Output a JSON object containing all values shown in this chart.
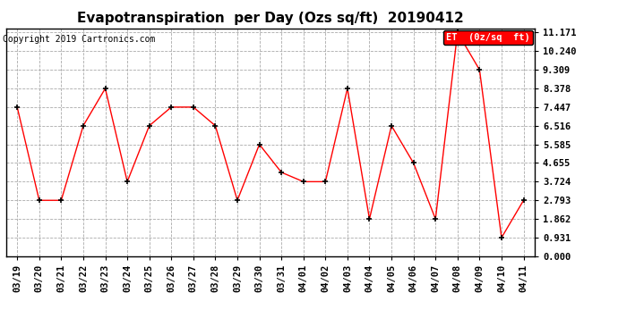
{
  "title": "Evapotranspiration  per Day (Ozs sq/ft)  20190412",
  "copyright": "Copyright 2019 Cartronics.com",
  "legend_label": "ET  (0z/sq  ft)",
  "x_labels": [
    "03/19",
    "03/20",
    "03/21",
    "03/22",
    "03/23",
    "03/24",
    "03/25",
    "03/26",
    "03/27",
    "03/28",
    "03/29",
    "03/30",
    "03/31",
    "04/01",
    "04/02",
    "04/03",
    "04/04",
    "04/05",
    "04/06",
    "04/07",
    "04/08",
    "04/09",
    "04/10",
    "04/11"
  ],
  "y_values": [
    7.447,
    2.793,
    2.793,
    6.516,
    8.378,
    3.724,
    6.516,
    7.447,
    7.447,
    6.516,
    2.793,
    5.585,
    4.19,
    3.724,
    3.724,
    8.378,
    1.862,
    6.516,
    4.655,
    1.862,
    11.171,
    9.309,
    0.931,
    2.793
  ],
  "y_ticks": [
    0.0,
    0.931,
    1.862,
    2.793,
    3.724,
    4.655,
    5.585,
    6.516,
    7.447,
    8.378,
    9.309,
    10.24,
    11.171
  ],
  "y_min": 0.0,
  "y_max": 11.171,
  "line_color": "red",
  "marker_color": "black",
  "grid_color": "#aaaaaa",
  "background_color": "white",
  "title_fontsize": 11,
  "copyright_fontsize": 7,
  "legend_bg": "red",
  "legend_text_color": "white",
  "tick_fontsize": 7.5,
  "legend_fontsize": 7.5
}
